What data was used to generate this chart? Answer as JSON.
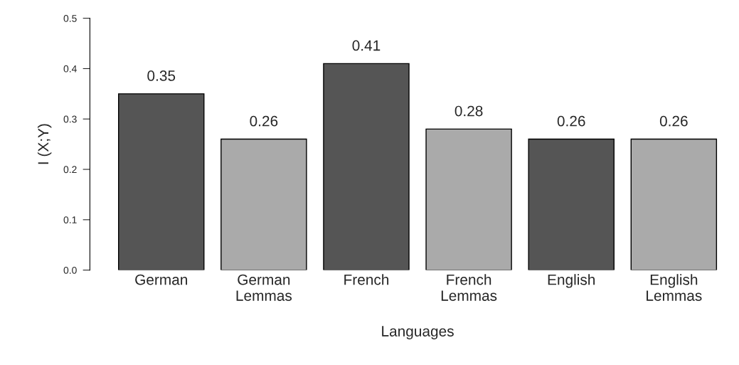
{
  "chart_data": {
    "type": "bar",
    "xlabel": "Languages",
    "ylabel": "I (X;Y)",
    "categories": [
      "German",
      "German\nLemmas",
      "French",
      "French\nLemmas",
      "English",
      "English\nLemmas"
    ],
    "values": [
      0.35,
      0.26,
      0.41,
      0.28,
      0.26,
      0.26
    ],
    "colors": [
      "#555555",
      "#aaaaaa",
      "#555555",
      "#aaaaaa",
      "#555555",
      "#aaaaaa"
    ],
    "ylim": [
      0,
      0.5
    ],
    "yticks": [
      {
        "value": 0,
        "label": "0.0"
      },
      0.1,
      0.2,
      0.3,
      0.4,
      0.5
    ],
    "data_labels": true,
    "grid": false,
    "legend": false
  }
}
